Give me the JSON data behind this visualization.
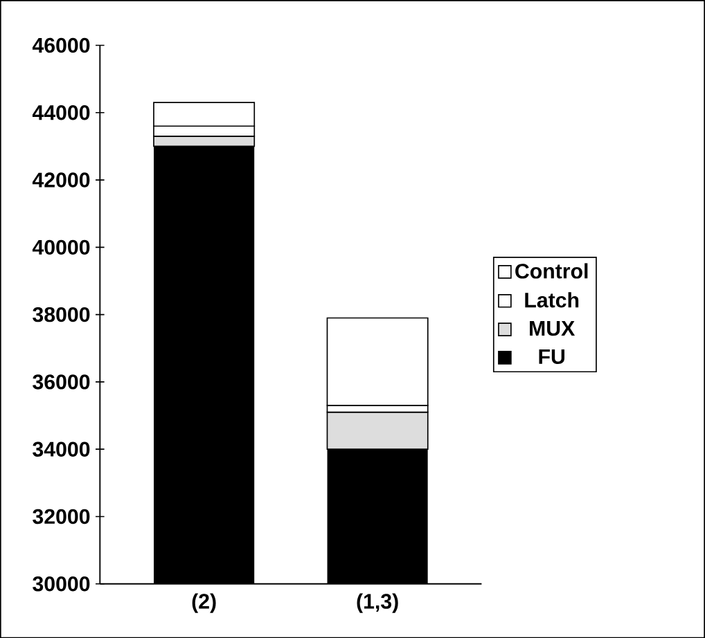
{
  "chart_data": {
    "type": "bar",
    "stacked": true,
    "categories": [
      "(2)",
      "(1,3)"
    ],
    "series": [
      {
        "name": "FU",
        "color": "#000000",
        "values": [
          43000,
          34000
        ]
      },
      {
        "name": "MUX",
        "color": "#dddddd",
        "base": [
          43000,
          34000
        ],
        "values": [
          300,
          1100
        ]
      },
      {
        "name": "Latch",
        "color": "#ffffff",
        "base": [
          43300,
          35100
        ],
        "values": [
          300,
          200
        ]
      },
      {
        "name": "Control",
        "color": "#ffffff",
        "base": [
          43600,
          35300
        ],
        "values": [
          700,
          2600
        ]
      }
    ],
    "ylim": [
      30000,
      46000
    ],
    "yticks": [
      30000,
      32000,
      34000,
      36000,
      38000,
      40000,
      42000,
      44000,
      46000
    ],
    "grid": false,
    "legend": "right"
  }
}
